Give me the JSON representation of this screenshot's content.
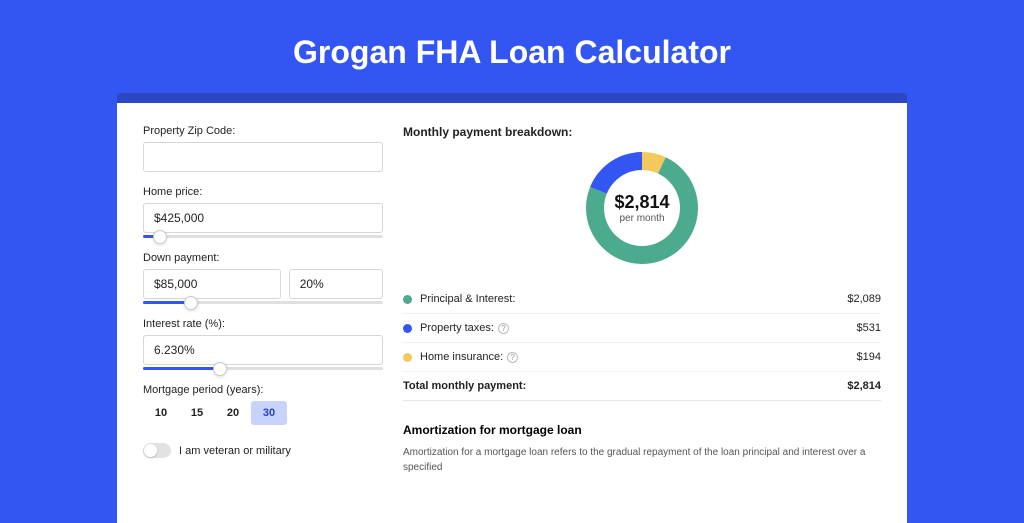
{
  "page_title": "Grogan FHA Loan Calculator",
  "form": {
    "zip": {
      "label": "Property Zip Code:",
      "value": ""
    },
    "home_price": {
      "label": "Home price:",
      "value": "$425,000",
      "slider_pct": 7
    },
    "down_payment": {
      "label": "Down payment:",
      "amount": "$85,000",
      "pct": "20%",
      "slider_pct": 20
    },
    "interest": {
      "label": "Interest rate (%):",
      "value": "6.230%",
      "slider_pct": 32
    },
    "period": {
      "label": "Mortgage period (years):",
      "options": [
        "10",
        "15",
        "20",
        "30"
      ],
      "active_index": 3
    },
    "veteran": {
      "label": "I am veteran or military",
      "on": false
    }
  },
  "breakdown": {
    "title": "Monthly payment breakdown:",
    "donut_amount": "$2,814",
    "donut_sub": "per month",
    "items": [
      {
        "label": "Principal & Interest:",
        "value": "$2,089",
        "color": "#4cab8e",
        "angle": 267,
        "info": false
      },
      {
        "label": "Property taxes:",
        "value": "$531",
        "color": "#3356f3",
        "angle": 68,
        "info": true
      },
      {
        "label": "Home insurance:",
        "value": "$194",
        "color": "#f3c95b",
        "angle": 25,
        "info": true
      }
    ],
    "total_label": "Total monthly payment:",
    "total_value": "$2,814"
  },
  "amort": {
    "title": "Amortization for mortgage loan",
    "text": "Amortization for a mortgage loan refers to the gradual repayment of the loan principal and interest over a specified"
  },
  "colors": {
    "page_bg": "#3356f3",
    "card_outer": "#2d46c4",
    "slider_fill": "#3356f3"
  }
}
